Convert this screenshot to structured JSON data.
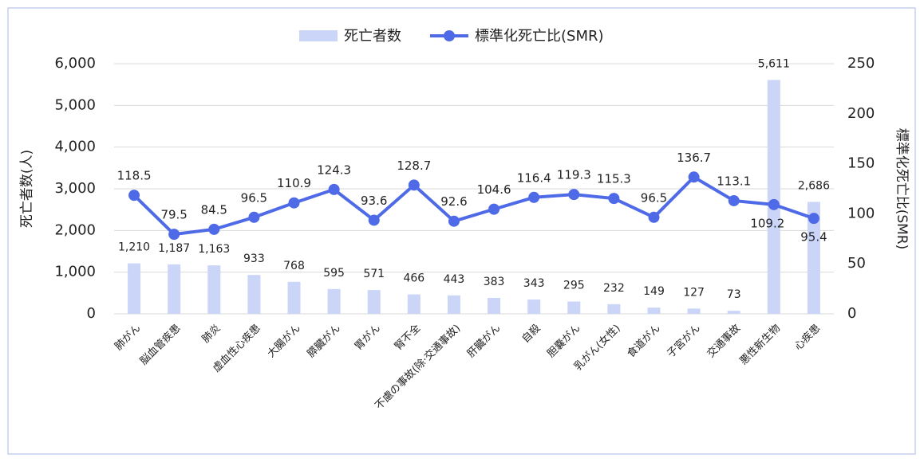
{
  "chart_data": {
    "type": "bar_line",
    "categories": [
      "肺がん",
      "脳血管疾患",
      "肺炎",
      "虚血性心疾患",
      "大腸がん",
      "膵臓がん",
      "胃がん",
      "腎不全",
      "不慮の事故(除·交通事故)",
      "肝臓がん",
      "自殺",
      "胆嚢がん",
      "乳がん(女性)",
      "食道がん",
      "子宮がん",
      "交通事故",
      "悪性新生物",
      "心疾患"
    ],
    "series": [
      {
        "name": "死亡者数",
        "type": "bar",
        "color": "#cbd5f8",
        "values": [
          1210,
          1187,
          1163,
          933,
          768,
          595,
          571,
          466,
          443,
          383,
          343,
          295,
          232,
          149,
          127,
          73,
          5611,
          2686
        ],
        "value_labels": [
          "1,210",
          "1,187",
          "1,163",
          "933",
          "768",
          "595",
          "571",
          "466",
          "443",
          "383",
          "343",
          "295",
          "232",
          "149",
          "127",
          "73",
          "5,611",
          "2,686"
        ]
      },
      {
        "name": "標準化死亡比(SMR)",
        "type": "line",
        "axis": "y2",
        "color": "#4f6ae6",
        "values": [
          118.5,
          79.5,
          84.5,
          96.5,
          110.9,
          124.3,
          93.6,
          128.7,
          92.6,
          104.6,
          116.4,
          119.3,
          115.3,
          96.5,
          136.7,
          113.1,
          109.2,
          95.4
        ]
      }
    ],
    "ylabel": "死亡者数(人)",
    "y2label": "標準化死亡比(SMR)",
    "ylim": [
      0,
      6000
    ],
    "yticks": [
      0,
      {
        "value": 1000,
        "label": "1,000"
      },
      {
        "value": 2000,
        "label": "2,000"
      },
      {
        "value": 3000,
        "label": "3,000"
      },
      {
        "value": 4000,
        "label": "4,000"
      },
      {
        "value": 5000,
        "label": "5,000"
      },
      {
        "value": 6000,
        "label": "6,000"
      }
    ],
    "y2lim": [
      0,
      250
    ],
    "y2ticks": [
      0,
      50,
      100,
      150,
      200,
      250
    ],
    "grid": true,
    "legend": "top"
  }
}
